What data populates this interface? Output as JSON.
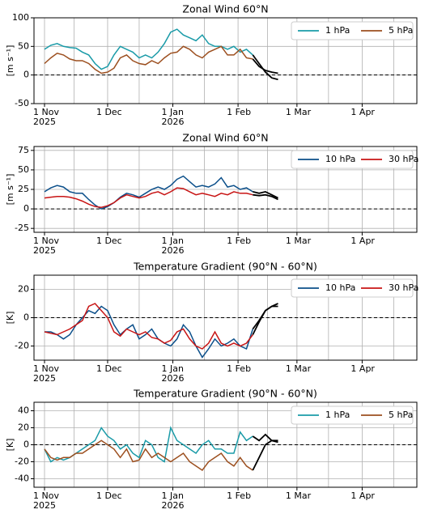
{
  "chart_data": [
    {
      "type": "line",
      "title": "Zonal Wind 60°N",
      "ylabel": "[m s⁻¹]",
      "x": [
        0,
        3,
        6,
        9,
        12,
        15,
        18,
        21,
        24,
        27,
        30,
        33,
        36,
        39,
        42,
        45,
        48,
        51,
        54,
        57,
        60,
        63,
        66,
        69,
        72,
        75,
        78,
        81,
        84,
        87,
        90,
        93,
        96,
        99
      ],
      "xlim": [
        -5,
        177
      ],
      "xticks": [
        {
          "value": 0,
          "label": "1 Nov\n2025"
        },
        {
          "value": 30,
          "label": "1 Dec"
        },
        {
          "value": 61,
          "label": "1 Jan\n2026"
        },
        {
          "value": 92,
          "label": "1 Feb"
        },
        {
          "value": 120,
          "label": "1 Mar"
        },
        {
          "value": 151,
          "label": "1 Apr"
        }
      ],
      "xminorticks": [
        14,
        45,
        76,
        106,
        135,
        166
      ],
      "ylim": [
        -50,
        100
      ],
      "yticks": [
        -50,
        0,
        50,
        100
      ],
      "grid": true,
      "legend": "upper right",
      "zero_line": true,
      "series": [
        {
          "name": "1 hPa",
          "color": "#1a9ba8",
          "values": [
            45,
            52,
            55,
            50,
            48,
            47,
            40,
            35,
            20,
            10,
            15,
            35,
            50,
            45,
            40,
            30,
            35,
            30,
            40,
            55,
            75,
            80,
            70,
            65,
            60,
            70,
            55,
            50,
            50,
            45,
            50,
            40,
            45,
            35
          ]
        },
        {
          "name": "5 hPa",
          "color": "#9c4f1f",
          "values": [
            20,
            30,
            38,
            35,
            28,
            25,
            25,
            20,
            10,
            3,
            5,
            12,
            30,
            35,
            25,
            20,
            18,
            25,
            20,
            30,
            38,
            40,
            50,
            45,
            35,
            30,
            40,
            45,
            50,
            35,
            35,
            45,
            30,
            28
          ]
        },
        {
          "color": "#000000",
          "x": [
            99,
            102,
            105,
            108,
            111
          ],
          "values": [
            35,
            20,
            5,
            -5,
            -8
          ]
        },
        {
          "color": "#000000",
          "x": [
            99,
            102,
            105,
            108,
            111
          ],
          "values": [
            28,
            15,
            8,
            5,
            3
          ]
        }
      ]
    },
    {
      "type": "line",
      "title": "Zonal Wind 60°N",
      "ylabel": "[m s⁻¹]",
      "x": [
        0,
        3,
        6,
        9,
        12,
        15,
        18,
        21,
        24,
        27,
        30,
        33,
        36,
        39,
        42,
        45,
        48,
        51,
        54,
        57,
        60,
        63,
        66,
        69,
        72,
        75,
        78,
        81,
        84,
        87,
        90,
        93,
        96,
        99
      ],
      "xlim": [
        -5,
        177
      ],
      "xticks": [
        {
          "value": 0,
          "label": "1 Nov\n2025"
        },
        {
          "value": 30,
          "label": "1 Dec"
        },
        {
          "value": 61,
          "label": "1 Jan\n2026"
        },
        {
          "value": 92,
          "label": "1 Feb"
        },
        {
          "value": 120,
          "label": "1 Mar"
        },
        {
          "value": 151,
          "label": "1 Apr"
        }
      ],
      "xminorticks": [
        14,
        45,
        76,
        106,
        135,
        166
      ],
      "ylim": [
        -30,
        80
      ],
      "yticks": [
        -25,
        0,
        25,
        50,
        75
      ],
      "grid": true,
      "legend": "upper right",
      "zero_line": true,
      "series": [
        {
          "name": "10 hPa",
          "color": "#0b4f8a",
          "values": [
            22,
            27,
            30,
            28,
            22,
            20,
            20,
            12,
            5,
            0,
            3,
            8,
            15,
            20,
            18,
            15,
            20,
            25,
            28,
            25,
            30,
            38,
            42,
            35,
            28,
            30,
            28,
            32,
            40,
            28,
            30,
            25,
            27,
            22
          ]
        },
        {
          "name": "30 hPa",
          "color": "#c81414",
          "values": [
            14,
            15,
            16,
            16,
            15,
            13,
            10,
            6,
            3,
            2,
            4,
            8,
            14,
            18,
            16,
            14,
            16,
            20,
            22,
            18,
            22,
            27,
            26,
            22,
            18,
            20,
            18,
            16,
            20,
            18,
            22,
            20,
            20,
            18
          ]
        },
        {
          "color": "#000000",
          "x": [
            99,
            102,
            105,
            108,
            111
          ],
          "values": [
            22,
            20,
            22,
            18,
            14
          ]
        },
        {
          "color": "#000000",
          "x": [
            99,
            102,
            105,
            108,
            111
          ],
          "values": [
            18,
            17,
            18,
            16,
            12
          ]
        }
      ]
    },
    {
      "type": "line",
      "title": "Temperature Gradient (90°N - 60°N)",
      "ylabel": "[K]",
      "x": [
        0,
        3,
        6,
        9,
        12,
        15,
        18,
        21,
        24,
        27,
        30,
        33,
        36,
        39,
        42,
        45,
        48,
        51,
        54,
        57,
        60,
        63,
        66,
        69,
        72,
        75,
        78,
        81,
        84,
        87,
        90,
        93,
        96,
        99
      ],
      "xlim": [
        -5,
        177
      ],
      "xticks": [
        {
          "value": 0,
          "label": "1 Nov\n2025"
        },
        {
          "value": 30,
          "label": "1 Dec"
        },
        {
          "value": 61,
          "label": "1 Jan\n2026"
        },
        {
          "value": 92,
          "label": "1 Feb"
        },
        {
          "value": 120,
          "label": "1 Mar"
        },
        {
          "value": 151,
          "label": "1 Apr"
        }
      ],
      "xminorticks": [
        14,
        45,
        76,
        106,
        135,
        166
      ],
      "ylim": [
        -30,
        30
      ],
      "yticks": [
        -20,
        0,
        20
      ],
      "grid": true,
      "legend": "upper right",
      "zero_line": true,
      "series": [
        {
          "name": "10 hPa",
          "color": "#0b4f8a",
          "values": [
            -10,
            -10,
            -12,
            -15,
            -12,
            -5,
            0,
            5,
            3,
            8,
            5,
            -5,
            -12,
            -8,
            -5,
            -15,
            -12,
            -8,
            -15,
            -18,
            -20,
            -15,
            -5,
            -10,
            -20,
            -28,
            -22,
            -15,
            -20,
            -18,
            -15,
            -20,
            -22,
            -8
          ]
        },
        {
          "name": "30 hPa",
          "color": "#c81414",
          "values": [
            -10,
            -11,
            -12,
            -10,
            -8,
            -5,
            -2,
            8,
            10,
            5,
            0,
            -10,
            -13,
            -8,
            -10,
            -12,
            -10,
            -14,
            -15,
            -18,
            -16,
            -10,
            -8,
            -15,
            -20,
            -22,
            -18,
            -10,
            -18,
            -20,
            -18,
            -20,
            -18,
            -12
          ]
        },
        {
          "color": "#000000",
          "x": [
            99,
            102,
            105,
            108,
            111
          ],
          "values": [
            -8,
            -2,
            5,
            8,
            10
          ]
        },
        {
          "color": "#000000",
          "x": [
            99,
            102,
            105,
            108,
            111
          ],
          "values": [
            -12,
            -3,
            5,
            8,
            8
          ]
        }
      ]
    },
    {
      "type": "line",
      "title": "Temperature Gradient (90°N - 60°N)",
      "ylabel": "[K]",
      "x": [
        0,
        3,
        6,
        9,
        12,
        15,
        18,
        21,
        24,
        27,
        30,
        33,
        36,
        39,
        42,
        45,
        48,
        51,
        54,
        57,
        60,
        63,
        66,
        69,
        72,
        75,
        78,
        81,
        84,
        87,
        90,
        93,
        96,
        99
      ],
      "xlim": [
        -5,
        177
      ],
      "xticks": [
        {
          "value": 0,
          "label": "1 Nov\n2025"
        },
        {
          "value": 30,
          "label": "1 Dec"
        },
        {
          "value": 61,
          "label": "1 Jan\n2026"
        },
        {
          "value": 92,
          "label": "1 Feb"
        },
        {
          "value": 120,
          "label": "1 Mar"
        },
        {
          "value": 151,
          "label": "1 Apr"
        }
      ],
      "xminorticks": [
        14,
        45,
        76,
        106,
        135,
        166
      ],
      "ylim": [
        -50,
        50
      ],
      "yticks": [
        -40,
        -20,
        0,
        20,
        40
      ],
      "grid": true,
      "legend": "upper right",
      "zero_line": true,
      "series": [
        {
          "name": "1 hPa",
          "color": "#1a9ba8",
          "values": [
            -5,
            -20,
            -15,
            -18,
            -15,
            -10,
            -5,
            0,
            5,
            20,
            10,
            5,
            -5,
            0,
            -10,
            -15,
            5,
            0,
            -15,
            -20,
            20,
            5,
            0,
            -5,
            -10,
            0,
            5,
            -5,
            -5,
            -10,
            -10,
            15,
            5,
            10
          ]
        },
        {
          "name": "5 hPa",
          "color": "#9c4f1f",
          "values": [
            -5,
            -15,
            -18,
            -15,
            -15,
            -10,
            -10,
            -5,
            0,
            5,
            0,
            -5,
            -15,
            -5,
            -20,
            -18,
            -5,
            -15,
            -10,
            -15,
            -20,
            -15,
            -10,
            -20,
            -25,
            -30,
            -20,
            -15,
            -10,
            -20,
            -25,
            -15,
            -25,
            -30
          ]
        },
        {
          "color": "#000000",
          "x": [
            99,
            102,
            105,
            108,
            111
          ],
          "values": [
            10,
            5,
            12,
            5,
            3
          ]
        },
        {
          "color": "#000000",
          "x": [
            99,
            102,
            105,
            108,
            111
          ],
          "values": [
            -30,
            -15,
            0,
            5,
            5
          ]
        }
      ]
    }
  ]
}
